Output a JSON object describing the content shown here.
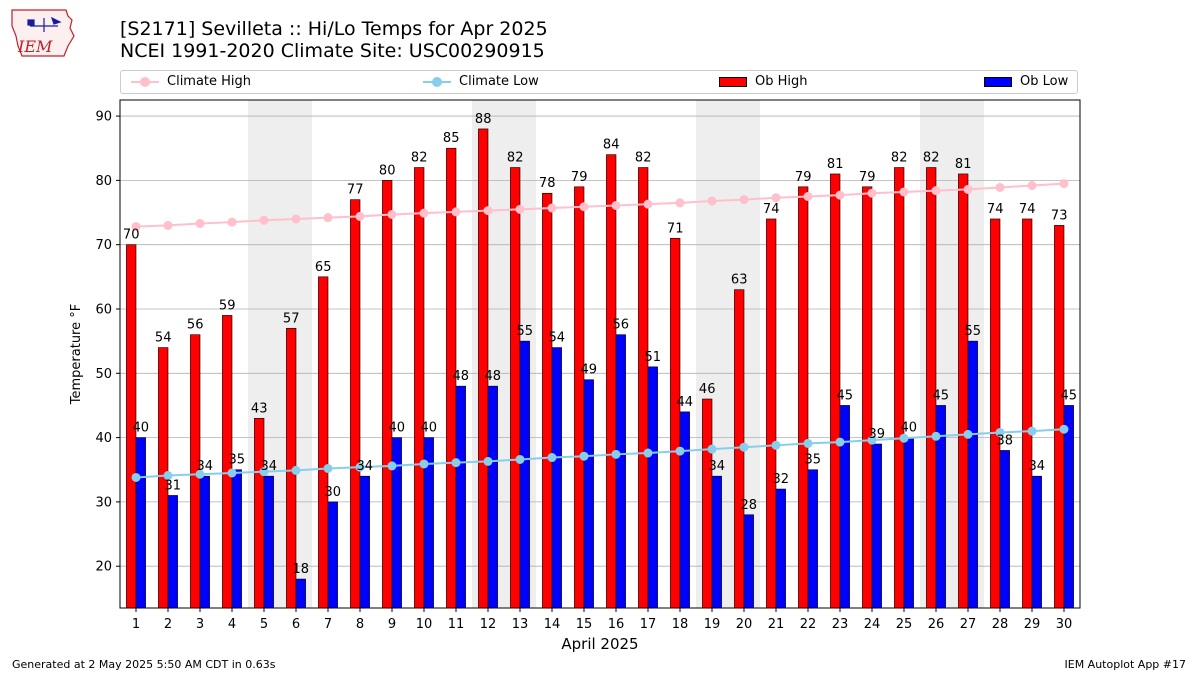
{
  "header": {
    "title_line1": "[S2171] Sevilleta :: Hi/Lo Temps for Apr 2025",
    "title_line2": "NCEI 1991-2020 Climate Site: USC00290915",
    "logo_text": "IEM"
  },
  "legend": {
    "items": [
      {
        "label": "Climate High",
        "kind": "line",
        "color": "#ffc0cb"
      },
      {
        "label": "Climate Low",
        "kind": "line",
        "color": "#87ceeb"
      },
      {
        "label": "Ob High",
        "kind": "box",
        "color": "#ff0000"
      },
      {
        "label": "Ob Low",
        "kind": "box",
        "color": "#0000ff"
      }
    ]
  },
  "footer": {
    "generated": "Generated at 2 May 2025 5:50 AM CDT in 0.63s",
    "app": "IEM Autoplot App #17"
  },
  "chart_data": {
    "type": "bar",
    "xlabel": "April 2025",
    "ylabel": "Temperature °F",
    "ylim": [
      13.5,
      92.5
    ],
    "yticks": [
      20,
      30,
      40,
      50,
      60,
      70,
      80,
      90
    ],
    "grid": true,
    "legend_position": "top",
    "weekend_shaded_days": [
      5,
      6,
      12,
      13,
      19,
      20,
      26,
      27
    ],
    "categories": [
      1,
      2,
      3,
      4,
      5,
      6,
      7,
      8,
      9,
      10,
      11,
      12,
      13,
      14,
      15,
      16,
      17,
      18,
      19,
      20,
      21,
      22,
      23,
      24,
      25,
      26,
      27,
      28,
      29,
      30
    ],
    "series": [
      {
        "name": "Ob High",
        "kind": "bar",
        "color": "#ff0000",
        "values": [
          70,
          54,
          56,
          59,
          43,
          57,
          65,
          77,
          80,
          82,
          85,
          88,
          82,
          78,
          79,
          84,
          82,
          71,
          46,
          63,
          74,
          79,
          81,
          79,
          82,
          82,
          81,
          74,
          74,
          73
        ]
      },
      {
        "name": "Ob Low",
        "kind": "bar",
        "color": "#0000ff",
        "values": [
          40,
          31,
          34,
          35,
          34,
          18,
          30,
          34,
          40,
          40,
          48,
          48,
          55,
          54,
          49,
          56,
          51,
          44,
          34,
          28,
          32,
          35,
          45,
          39,
          40,
          45,
          55,
          38,
          34,
          45
        ]
      },
      {
        "name": "Climate High",
        "kind": "line",
        "color": "#ffc0cb",
        "values": [
          72.8,
          73.0,
          73.3,
          73.5,
          73.8,
          74.0,
          74.2,
          74.4,
          74.7,
          74.9,
          75.1,
          75.3,
          75.5,
          75.7,
          75.9,
          76.1,
          76.3,
          76.5,
          76.8,
          77.0,
          77.3,
          77.5,
          77.7,
          78.0,
          78.2,
          78.4,
          78.6,
          78.9,
          79.2,
          79.5
        ]
      },
      {
        "name": "Climate Low",
        "kind": "line",
        "color": "#87ceeb",
        "values": [
          33.8,
          34.1,
          34.3,
          34.5,
          34.7,
          34.9,
          35.2,
          35.4,
          35.6,
          35.9,
          36.1,
          36.3,
          36.6,
          36.9,
          37.1,
          37.4,
          37.6,
          37.9,
          38.2,
          38.5,
          38.8,
          39.1,
          39.3,
          39.6,
          39.9,
          40.2,
          40.5,
          40.8,
          41.0,
          41.3
        ]
      }
    ]
  }
}
